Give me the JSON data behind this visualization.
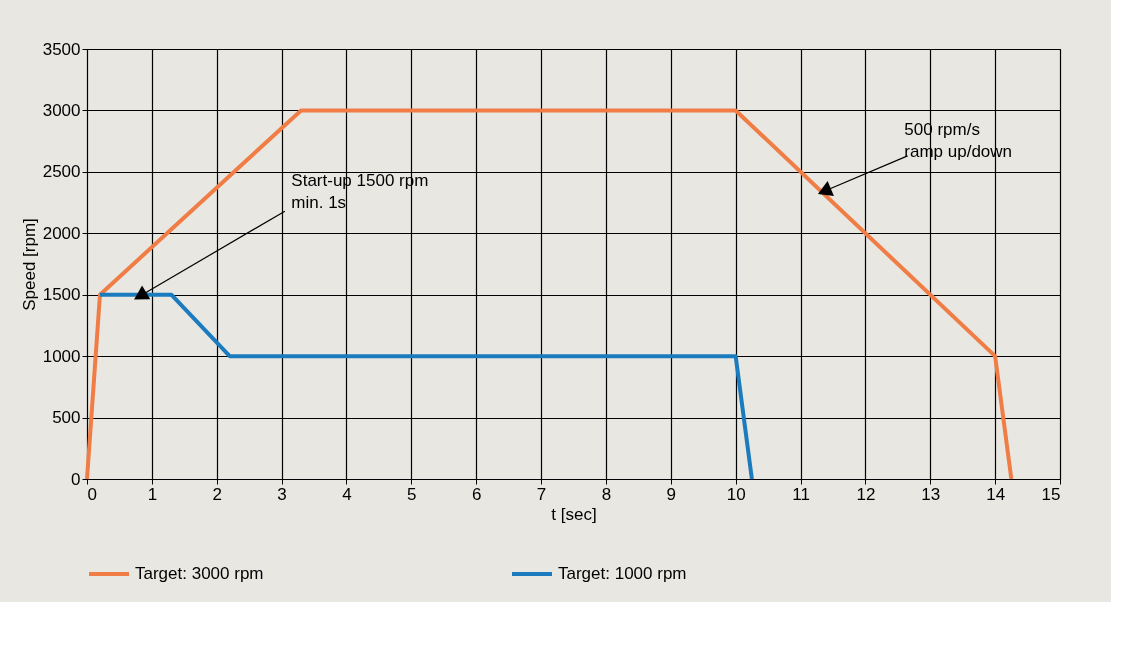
{
  "chart_data": {
    "type": "line",
    "xlabel": "t [sec]",
    "ylabel": "Speed [rpm]",
    "xlim": [
      0,
      15
    ],
    "xticks": [
      0,
      1,
      2,
      3,
      4,
      5,
      6,
      7,
      8,
      9,
      10,
      11,
      12,
      13,
      14,
      15
    ],
    "ylim": [
      0,
      3500
    ],
    "yticks": [
      0,
      500,
      1000,
      1500,
      2000,
      2500,
      3000,
      3500
    ],
    "grid": true,
    "legend": "bottom",
    "marker": "none",
    "line_style": "solid",
    "series": [
      {
        "name": "Target: 3000 rpm",
        "color": "#ef7d45",
        "x": [
          0,
          0.2,
          3.3,
          10,
          14,
          14.25
        ],
        "values": [
          0,
          1500,
          3000,
          3000,
          1000,
          0
        ]
      },
      {
        "name": "Target: 1000 rpm",
        "color": "#1a7bbf",
        "x": [
          0.2,
          1.3,
          2.2,
          10,
          10.25
        ],
        "values": [
          1500,
          1500,
          1000,
          1000,
          0
        ]
      }
    ],
    "annotations": [
      {
        "text": "Start-up 1500 rpm\nmin. 1s",
        "x": 0.85,
        "y": 1500
      },
      {
        "text": "500 rpm/s\nramp up/down",
        "x": 11.4,
        "y": 2350
      }
    ]
  }
}
